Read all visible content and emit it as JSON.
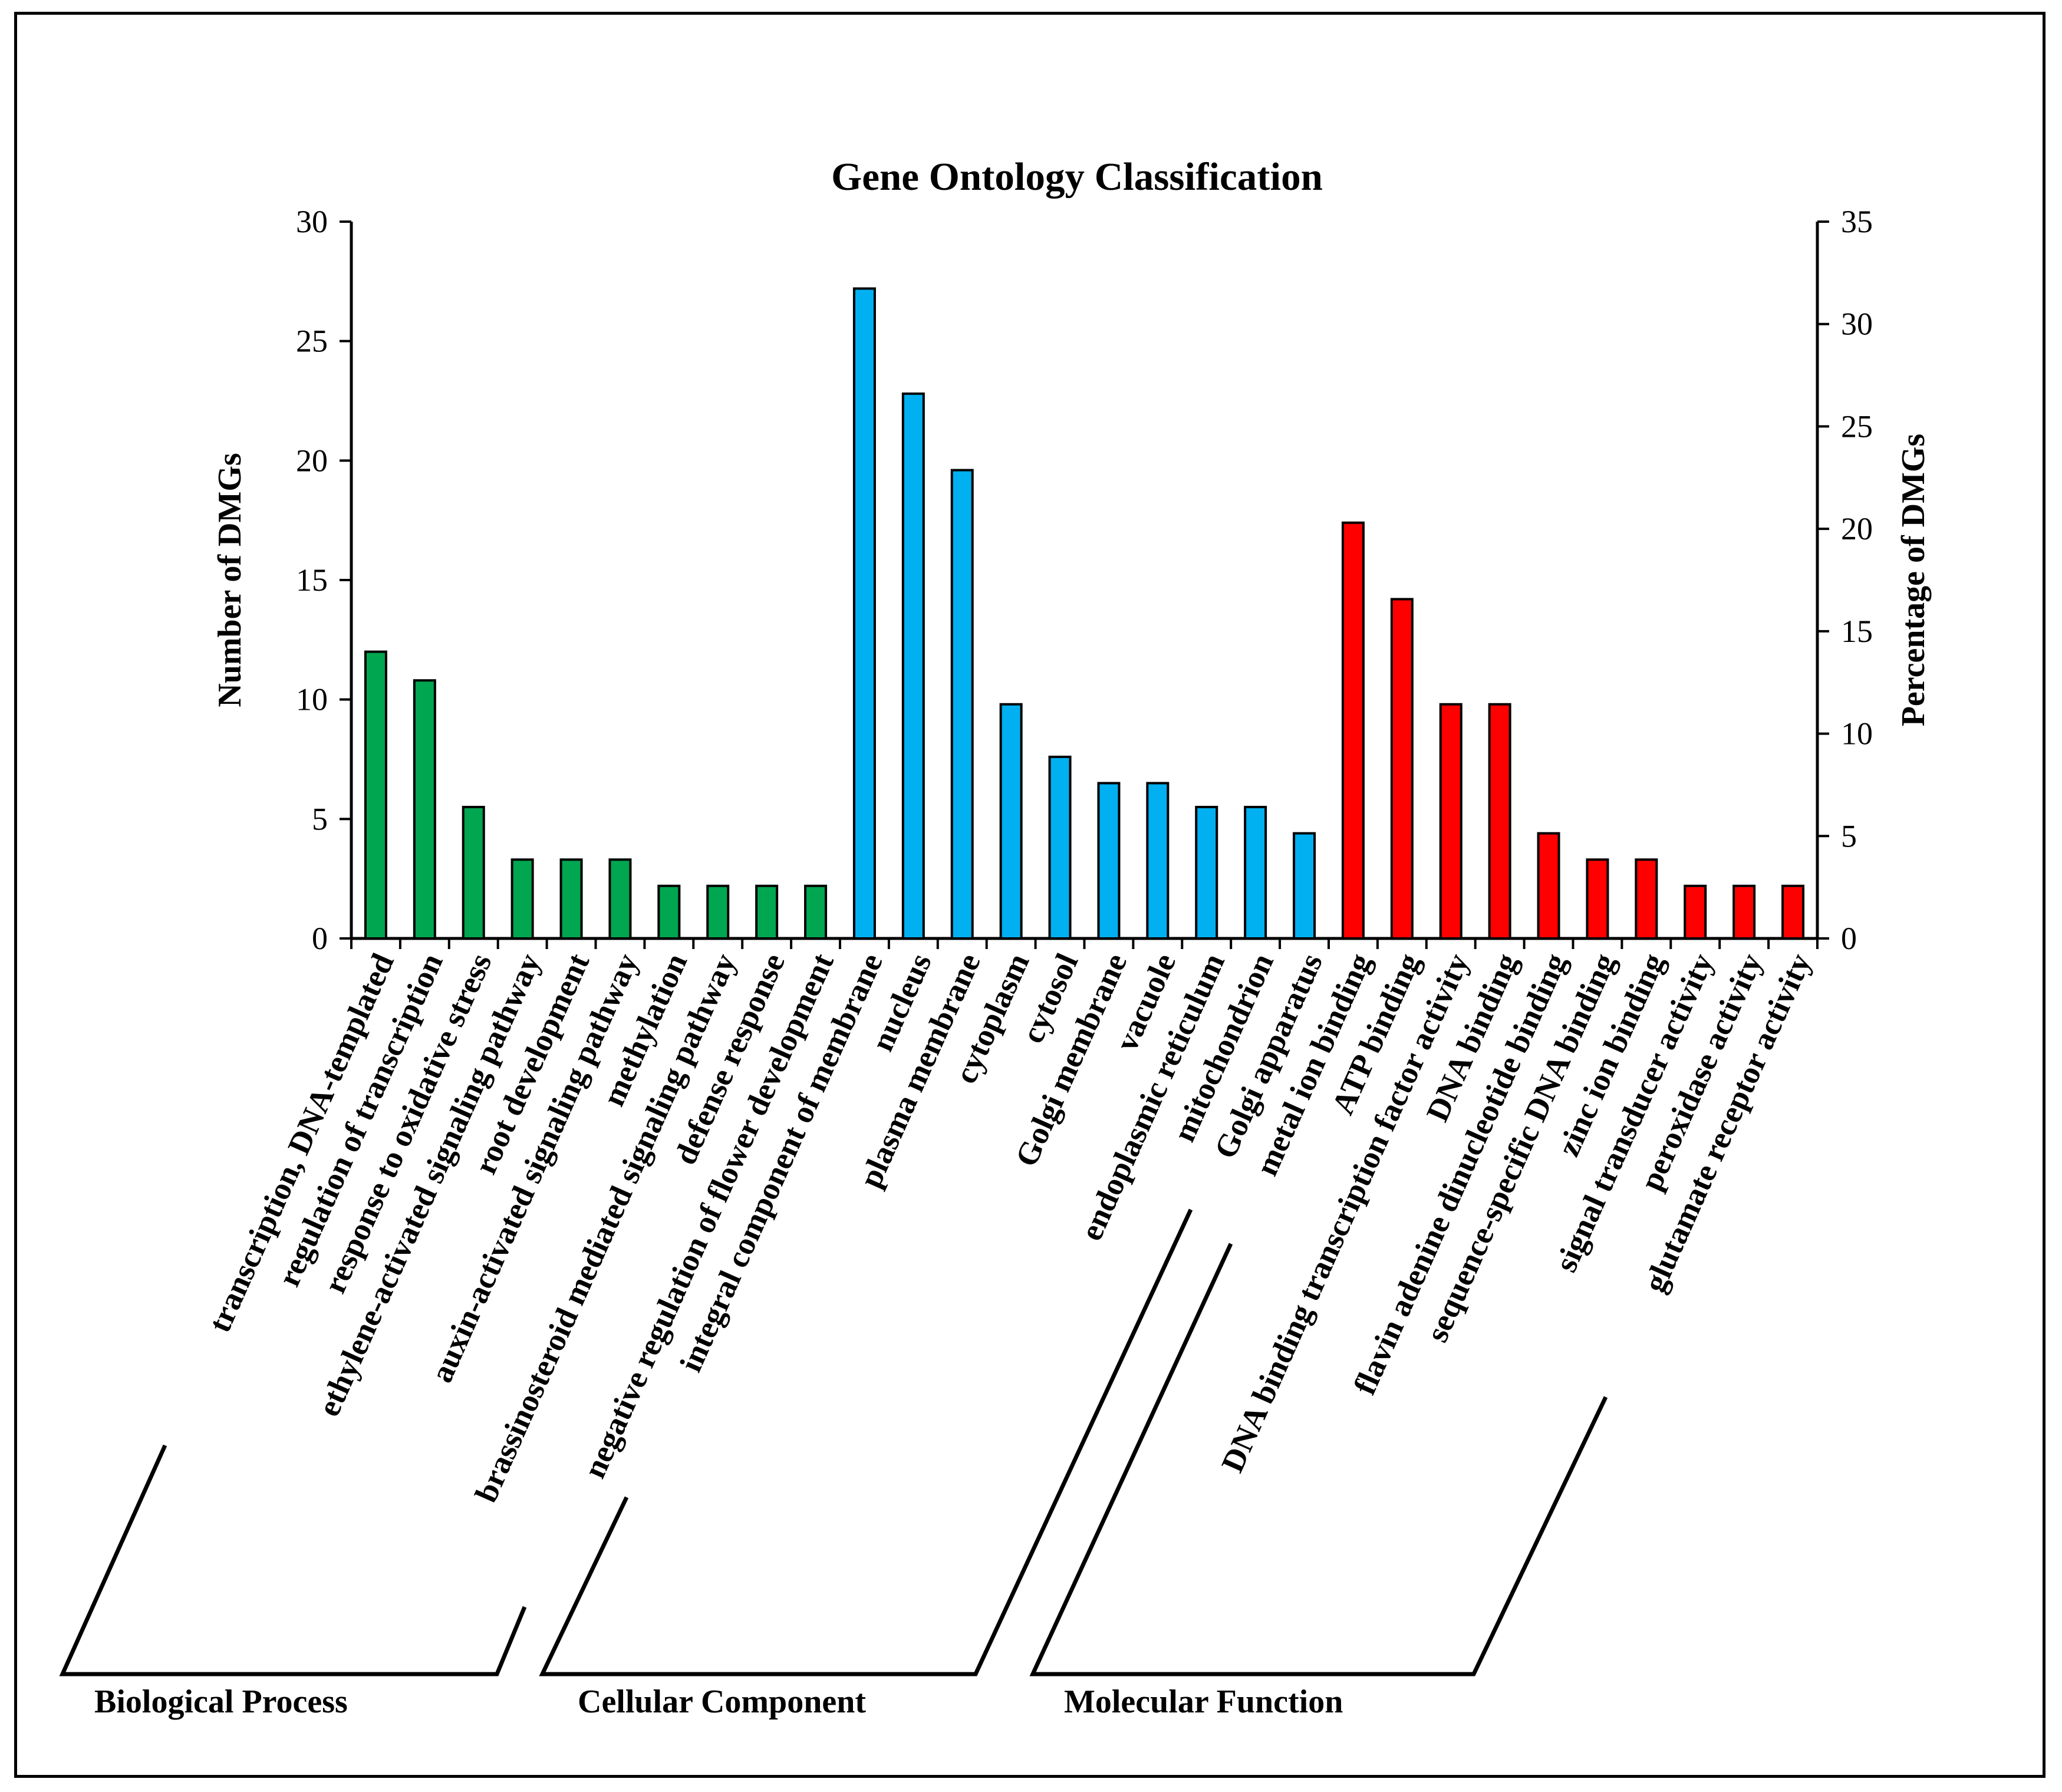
{
  "chart_data": {
    "type": "bar",
    "title": "Gene Ontology  Classification",
    "ylabel": "Number of DMGs",
    "y2label": "Percentage of DMGs",
    "ylim": [
      0,
      30
    ],
    "y2lim": [
      0,
      35
    ],
    "yticks": [
      0,
      5,
      10,
      15,
      20,
      25,
      30
    ],
    "y2ticks": [
      0,
      5,
      10,
      15,
      20,
      25,
      30,
      35
    ],
    "grid": false,
    "colors": {
      "Biological Process": "#00a650",
      "Cellular Component": "#00b0f0",
      "Molecular Function": "#ff0000",
      "axis": "#000000"
    },
    "groups": [
      {
        "name": "Biological Process",
        "categories": [
          "transcription, DNA-templated",
          "regulation of transcription",
          "response to oxidative stress",
          "ethylene-activated signaling pathway",
          "root development",
          "auxin-activated signaling pathway",
          "methylation",
          "brassinosteroid mediated signaling pathway",
          "defense response",
          "negative regulation of flower development"
        ],
        "values": [
          12,
          10.8,
          5.5,
          3.3,
          3.3,
          3.3,
          2.2,
          2.2,
          2.2,
          2.2
        ]
      },
      {
        "name": "Cellular Component",
        "categories": [
          "integral component of membrane",
          "nucleus",
          "plasma membrane",
          "cytoplasm",
          "cytosol",
          "Golgi membrane",
          "vacuole",
          "endoplasmic reticulum",
          "mitochondrion",
          "Golgi apparatus"
        ],
        "values": [
          27.2,
          22.8,
          19.6,
          9.8,
          7.6,
          6.5,
          6.5,
          5.5,
          5.5,
          4.4
        ]
      },
      {
        "name": "Molecular Function",
        "categories": [
          "metal ion binding",
          "ATP binding",
          "DNA binding transcription factor activity",
          "DNA binding",
          "flavin adenine dinucleotide binding",
          "sequence-specific DNA binding",
          "zinc ion binding",
          "signal transducer activity",
          "peroxidase activity",
          "glutamate receptor activity"
        ],
        "values": [
          17.4,
          14.2,
          9.8,
          9.8,
          4.4,
          3.3,
          3.3,
          2.2,
          2.2,
          2.2
        ]
      }
    ]
  }
}
